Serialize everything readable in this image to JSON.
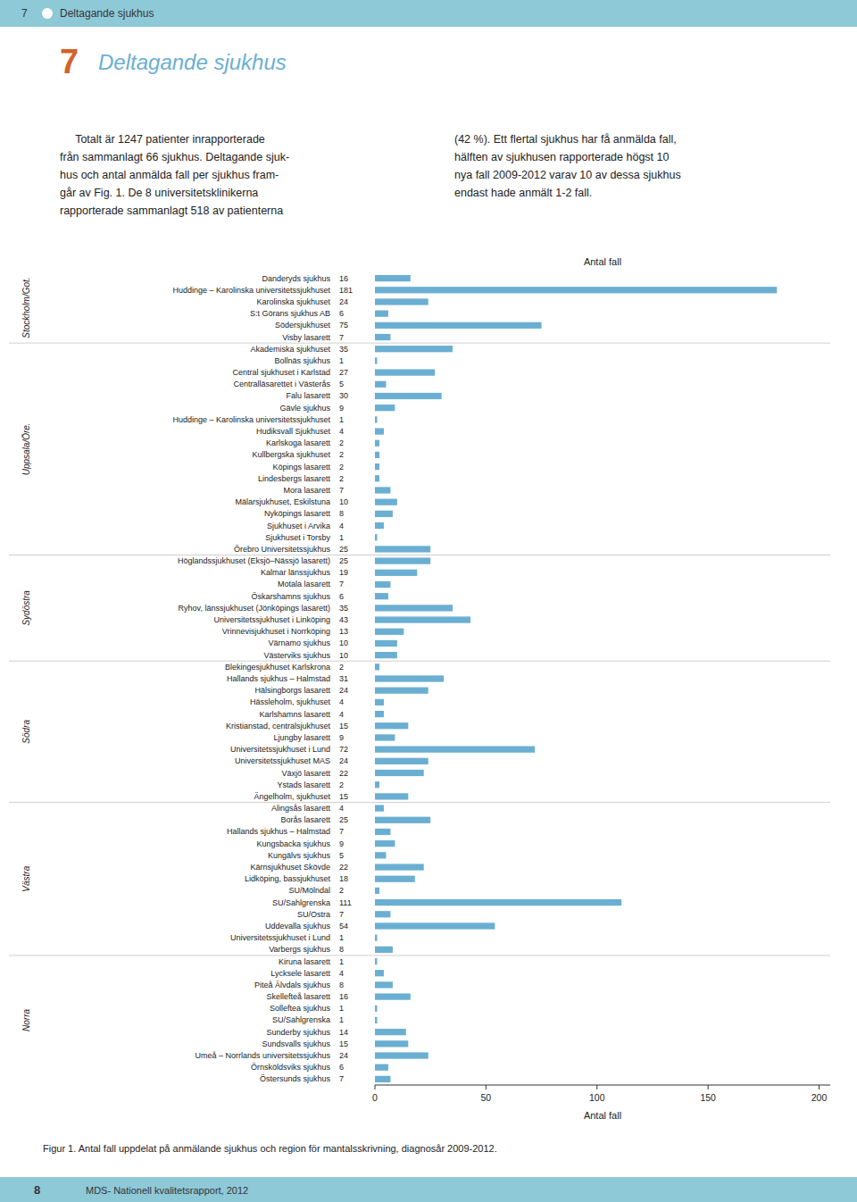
{
  "page": {
    "title_number": "7",
    "title": "Deltagande sjukhus",
    "body_text_left": "     Totalt är 1247 patienter inrapporterade\nfrån sammanlagt 66 sjukhus. Deltagande sjuk-\nhus och antal anmälda fall per sjukhus fram-\ngår av Fig. 1. De 8 universitetsklinikerna\nrapporterade sammanlagt 518 av patienterna",
    "body_text_right": "(42 %). Ett flertal sjukhus har få anmälda fall,\nhälften av sjukhusen rapporterade högst 10\nnya fall 2009-2012 varav 10 av dessa sjukhus\nendast hade anmält 1-2 fall.",
    "page_number": "8",
    "footer_text": "MDS- Nationell kvalitetsrapport, 2012",
    "header_color": "#8ec9d8",
    "background_color": "#ffffff"
  },
  "chart_data": {
    "type": "bar",
    "orientation": "horizontal",
    "caption": "Figur 1. Antal fall uppdelat på anmälande sjukhus och region för mantalsskrivning, diagnosår 2009-2012.",
    "xlabel_top": "Antal fall",
    "xlabel": "Antal fall",
    "color": "#6aafd2",
    "data_labels": true,
    "grid": false,
    "groups": [
      "Stockholm/Got.",
      "Uppsala/Öre.",
      "Sydöstra",
      "Södra",
      "Västra",
      "Norra"
    ],
    "categories": [
      "Danderyds sjukhus",
      "Huddinge – Karolinska universitetssjukhuset",
      "Karolinska sjukhuset",
      "S:t Görans sjukhus AB",
      "Södersjukhuset",
      "Visby lasarett",
      "Akademiska sjukhuset",
      "Bollnäs sjukhus",
      "Central sjukhuset i Karlstad",
      "Centralläsarettet i Västerås",
      "Falu lasarett",
      "Gävle sjukhus",
      "Huddinge – Karolinska universitetssjukhuset",
      "Hudiksvall Sjukhuset",
      "Karlskoga lasarett",
      "Kullbergska sjukhuset",
      "Köpings lasarett",
      "Lindesbergs lasarett",
      "Mora lasarett",
      "Mälarsjukhuset, Eskilstuna",
      "Nyköpings lasarett",
      "Sjukhuset i Arvika",
      "Sjukhuset i Torsby",
      "Örebro Universitetssjukhus",
      "Höglandssjukhuset (Eksjö–Nässjö lasarett)",
      "Kalmar länssjukhus",
      "Motala lasarett",
      "Öskarshamns sjukhus",
      "Ryhov, länssjukhuset (Jönköpings lasarett)",
      "Universitetssjukhuset i Linköping",
      "Vrinnevisjukhuset i Norrköping",
      "Värnamo sjukhus",
      "Västerviks sjukhus",
      "Blekingesjukhuset Karlskrona",
      "Hallands sjukhus – Halmstad",
      "Hälsingborgs lasarett",
      "Hässleholm, sjukhuset",
      "Karlshamns lasarett",
      "Kristianstad, centralsjukhuset",
      "Ljungby lasarett",
      "Universitetssjukhuset i Lund",
      "Universitetssjukhuset MAS",
      "Växjö lasarett",
      "Ystads lasarett",
      "Ängelholm, sjukhuset",
      "Alingsås lasarett",
      "Borås lasarett",
      "Hallands sjukhus – Halmstad",
      "Kungsbacka sjukhus",
      "Kungälvs sjukhus",
      "Kärnsjukhuset Skövde",
      "Lidköping, bassjukhuset",
      "SU/Mölndal",
      "SU/Sahlgrenska",
      "SU/Ostra",
      "Uddevalla sjukhus",
      "Universitetssjukhuset i Lund",
      "Varbergs sjukhus",
      "Kiruna lasarett",
      "Lycksele lasarett",
      "Piteå Älvdals sjukhus",
      "Skellefteå lasarett",
      "Solleftea sjukhus",
      "SU/Sahlgrenska",
      "Sunderby sjukhus",
      "Sundsvalls sjukhus",
      "Umeå – Norrlands universitetssjukhus",
      "Örnsköldsviks sjukhus",
      "Östersunds sjukhus"
    ],
    "category_groups": [
      "Stockholm/Got.",
      "Stockholm/Got.",
      "Stockholm/Got.",
      "Stockholm/Got.",
      "Stockholm/Got.",
      "Stockholm/Got.",
      "Uppsala/Öre.",
      "Uppsala/Öre.",
      "Uppsala/Öre.",
      "Uppsala/Öre.",
      "Uppsala/Öre.",
      "Uppsala/Öre.",
      "Uppsala/Öre.",
      "Uppsala/Öre.",
      "Uppsala/Öre.",
      "Uppsala/Öre.",
      "Uppsala/Öre.",
      "Uppsala/Öre.",
      "Uppsala/Öre.",
      "Uppsala/Öre.",
      "Uppsala/Öre.",
      "Uppsala/Öre.",
      "Uppsala/Öre.",
      "Uppsala/Öre.",
      "Sydöstra",
      "Sydöstra",
      "Sydöstra",
      "Sydöstra",
      "Sydöstra",
      "Sydöstra",
      "Sydöstra",
      "Sydöstra",
      "Sydöstra",
      "Södra",
      "Södra",
      "Södra",
      "Södra",
      "Södra",
      "Södra",
      "Södra",
      "Södra",
      "Södra",
      "Södra",
      "Södra",
      "Södra",
      "Västra",
      "Västra",
      "Västra",
      "Västra",
      "Västra",
      "Västra",
      "Västra",
      "Västra",
      "Västra",
      "Västra",
      "Västra",
      "Västra",
      "Västra",
      "Norra",
      "Norra",
      "Norra",
      "Norra",
      "Norra",
      "Norra",
      "Norra",
      "Norra",
      "Norra",
      "Norra",
      "Norra"
    ],
    "values": [
      16,
      181,
      24,
      6,
      75,
      7,
      35,
      1,
      27,
      5,
      30,
      9,
      1,
      4,
      2,
      2,
      2,
      2,
      7,
      10,
      8,
      4,
      1,
      25,
      25,
      19,
      7,
      6,
      35,
      43,
      13,
      10,
      10,
      2,
      31,
      24,
      4,
      4,
      15,
      9,
      72,
      24,
      22,
      2,
      15,
      4,
      25,
      7,
      9,
      5,
      22,
      18,
      2,
      111,
      7,
      54,
      1,
      8,
      1,
      4,
      8,
      16,
      1,
      1,
      14,
      15,
      24,
      6,
      7
    ],
    "xlim": [
      0,
      205
    ],
    "xticks": [
      0,
      50,
      100,
      150,
      200
    ]
  }
}
